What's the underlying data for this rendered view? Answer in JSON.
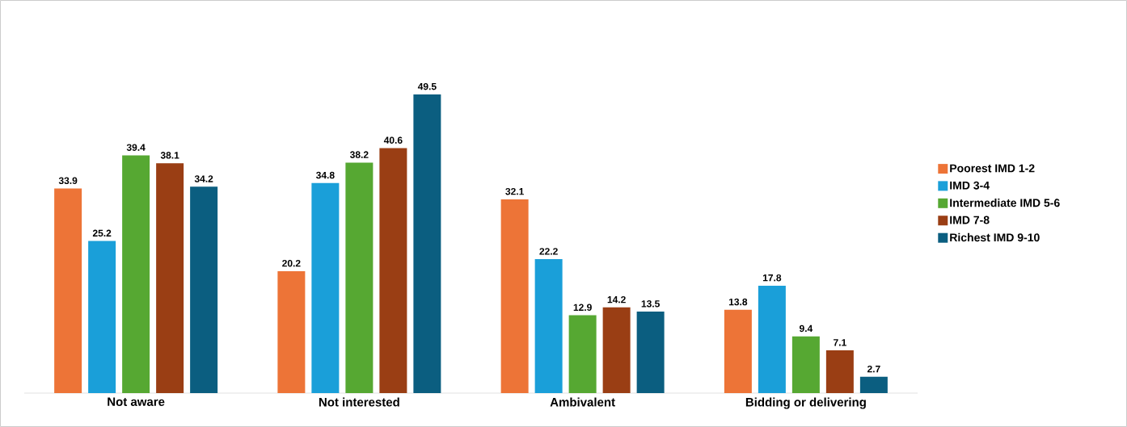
{
  "chart_data": {
    "type": "bar",
    "categories": [
      "Not aware",
      "Not interested",
      "Ambivalent",
      "Bidding or delivering"
    ],
    "series": [
      {
        "name": "Poorest IMD 1-2",
        "color": "#ed7437",
        "values": [
          33.9,
          20.2,
          32.1,
          13.8
        ]
      },
      {
        "name": "IMD 3-4",
        "color": "#1a9fd9",
        "values": [
          25.2,
          34.8,
          22.2,
          17.8
        ]
      },
      {
        "name": "Intermediate IMD 5-6",
        "color": "#56a832",
        "values": [
          39.4,
          38.2,
          12.9,
          9.4
        ]
      },
      {
        "name": "IMD 7-8",
        "color": "#9a3e14",
        "values": [
          38.1,
          40.6,
          14.2,
          7.1
        ]
      },
      {
        "name": "Richest IMD 9-10",
        "color": "#0b5e80",
        "values": [
          34.2,
          49.5,
          13.5,
          2.7
        ]
      }
    ],
    "data_labels": true,
    "legend": "right"
  }
}
